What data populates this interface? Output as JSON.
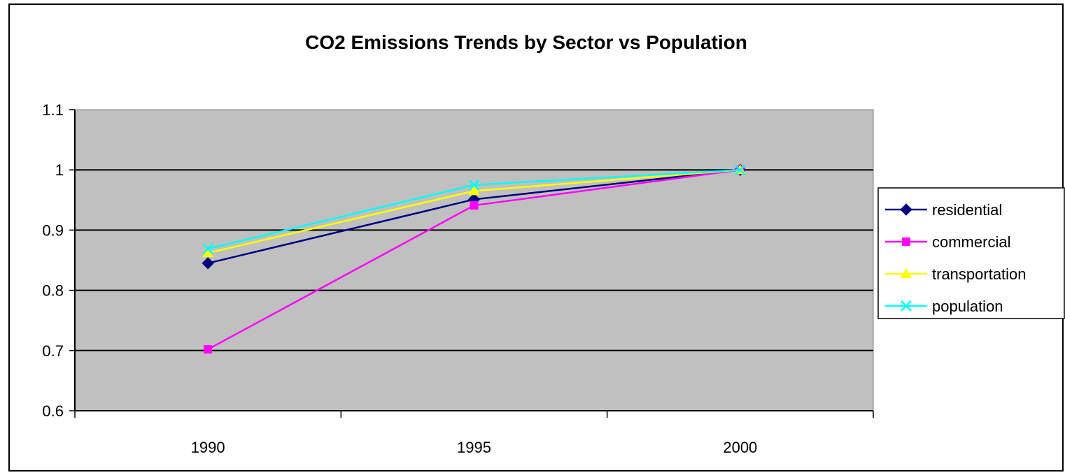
{
  "chart_data": {
    "type": "line",
    "title": "CO2 Emissions Trends by Sector vs Population",
    "xlabel": "",
    "ylabel": "",
    "categories": [
      "1990",
      "1995",
      "2000"
    ],
    "ylim": [
      0.6,
      1.1
    ],
    "yticks": [
      "0.6",
      "0.7",
      "0.8",
      "0.9",
      "1",
      "1.1"
    ],
    "grid": true,
    "plot_background": "#c0c0c0",
    "legend_position": "right",
    "series": [
      {
        "name": "residential",
        "values": [
          0.845,
          0.951,
          1.0
        ],
        "color": "#000080",
        "marker": "diamond"
      },
      {
        "name": "commercial",
        "values": [
          0.702,
          0.941,
          1.0
        ],
        "color": "#ff00ff",
        "marker": "square"
      },
      {
        "name": "transportation",
        "values": [
          0.862,
          0.965,
          1.0
        ],
        "color": "#ffff00",
        "marker": "triangle"
      },
      {
        "name": "population",
        "values": [
          0.869,
          0.975,
          1.0
        ],
        "color": "#00ffff",
        "marker": "x"
      }
    ]
  }
}
